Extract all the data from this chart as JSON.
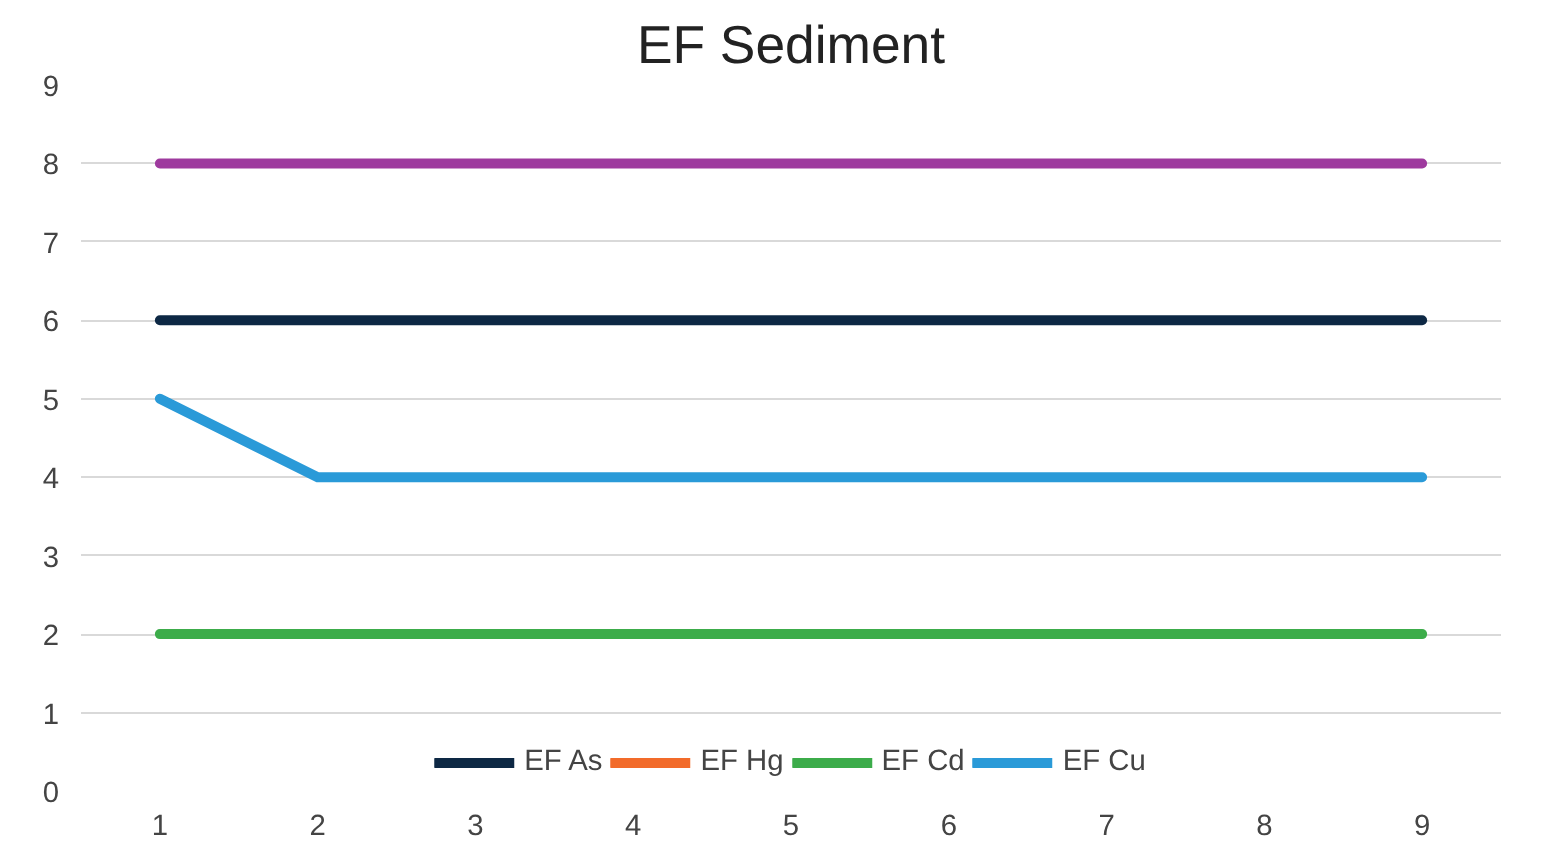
{
  "chart_data": {
    "type": "line",
    "title": "EF Sediment",
    "categories": [
      "1",
      "2",
      "3",
      "4",
      "5",
      "6",
      "7",
      "8",
      "9"
    ],
    "series": [
      {
        "color": "#9e3a9e",
        "values": [
          8,
          8,
          8,
          8,
          8,
          8,
          8,
          8,
          8
        ]
      },
      {
        "name": "EF As",
        "color": "#0d2844",
        "values": [
          6,
          6,
          6,
          6,
          6,
          6,
          6,
          6,
          6
        ]
      },
      {
        "name": "EF Hg",
        "color": "#f26b2a",
        "values": [
          null,
          null,
          null,
          null,
          null,
          null,
          null,
          null,
          null
        ]
      },
      {
        "name": "EF Cd",
        "color": "#3cac4a",
        "values": [
          2,
          2,
          2,
          2,
          2,
          2,
          2,
          2,
          2
        ]
      },
      {
        "name": "EF Cu",
        "color": "#2a9ad8",
        "values": [
          5,
          4,
          4,
          4,
          4,
          4,
          4,
          4,
          4
        ]
      }
    ],
    "ylim": [
      0,
      9
    ],
    "yticks": [
      0,
      1,
      2,
      3,
      4,
      5,
      6,
      7,
      8,
      9
    ],
    "grid": "y",
    "legend": "bottom",
    "marker": "none",
    "line_style": "solid"
  }
}
